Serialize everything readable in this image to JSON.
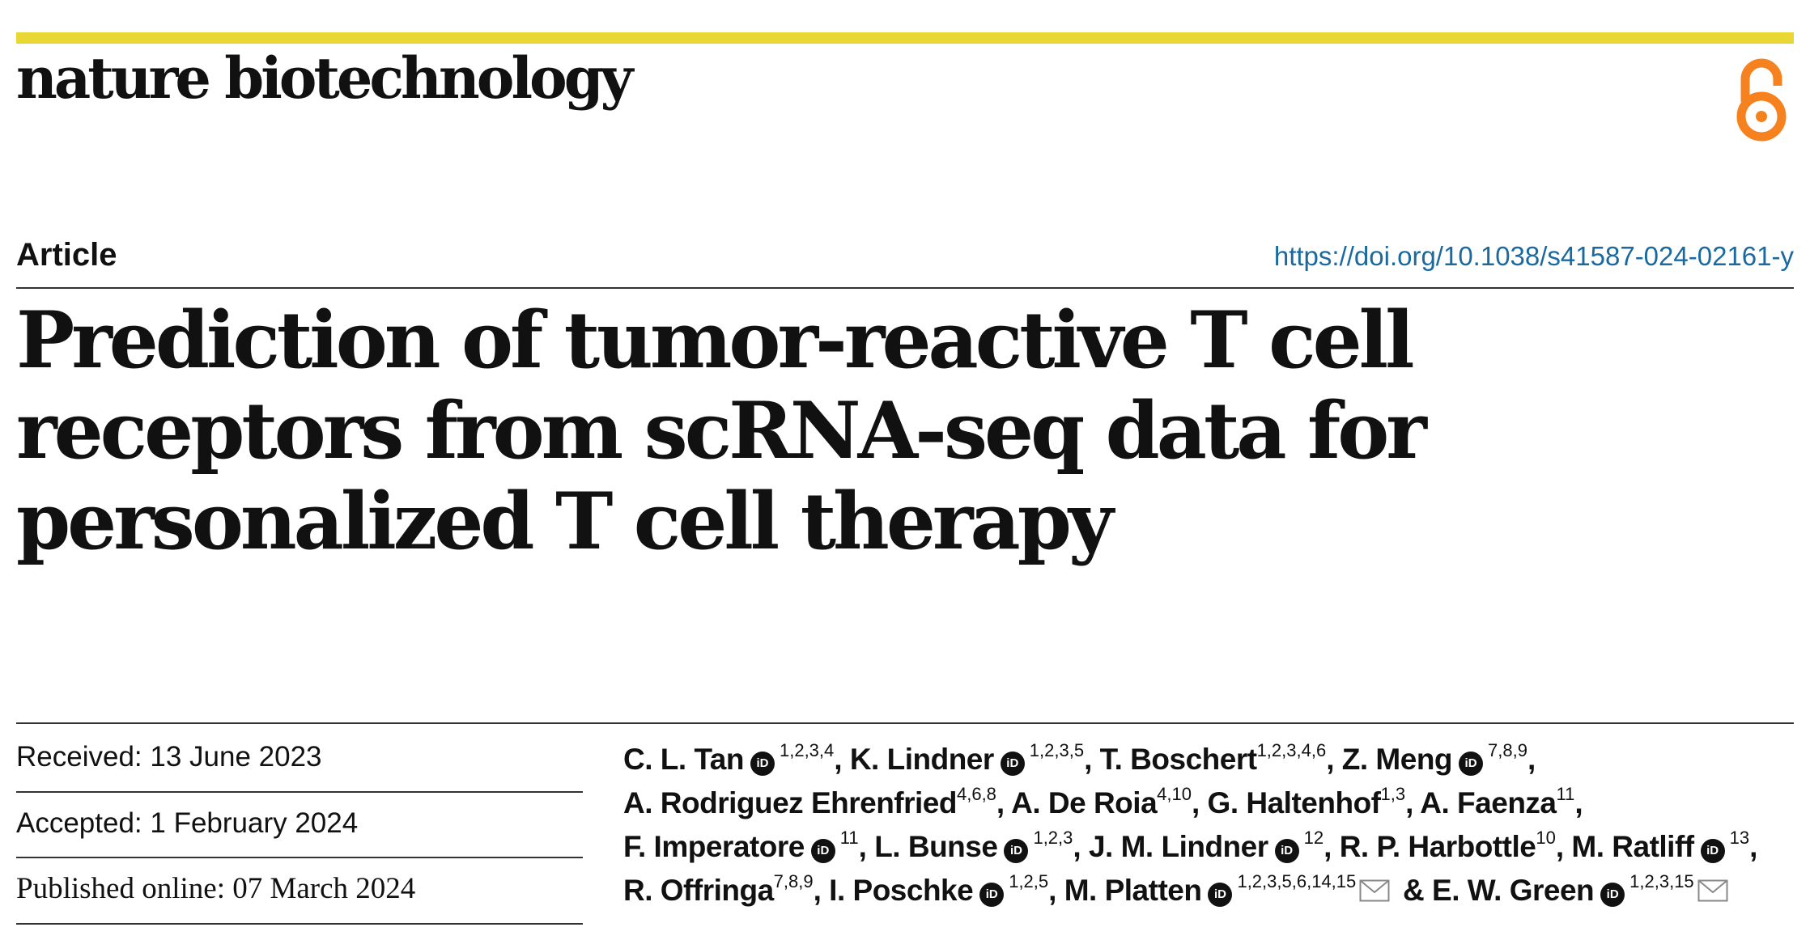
{
  "journal": {
    "name": "nature biotechnology",
    "accent_color": "#e8d734",
    "open_access_icon": "open-access-icon",
    "open_access_color": "#f5821f"
  },
  "article": {
    "type": "Article",
    "doi": "https://doi.org/10.1038/s41587-024-02161-y",
    "title": "Prediction of tumor-reactive T cell receptors from scRNA-seq data for personalized T cell therapy"
  },
  "dates": {
    "received": "Received: 13 June 2023",
    "accepted": "Accepted: 1 February 2024",
    "published": "Published online: 07 March 2024"
  },
  "authors": [
    {
      "name": "C. L. Tan",
      "orcid": true,
      "affiliations": "1,2,3,4",
      "sep": ", "
    },
    {
      "name": "K. Lindner",
      "orcid": true,
      "affiliations": "1,2,3,5",
      "sep": ", "
    },
    {
      "name": "T. Boschert",
      "orcid": false,
      "affiliations": "1,2,3,4,6",
      "sep": ", "
    },
    {
      "name": "Z. Meng",
      "orcid": true,
      "affiliations": "7,8,9",
      "sep": ", "
    },
    {
      "name": "A. Rodriguez Ehrenfried",
      "orcid": false,
      "affiliations": "4,6,8",
      "sep": ", "
    },
    {
      "name": "A. De Roia",
      "orcid": false,
      "affiliations": "4,10",
      "sep": ", "
    },
    {
      "name": "G. Haltenhof",
      "orcid": false,
      "affiliations": "1,3",
      "sep": ", "
    },
    {
      "name": "A. Faenza",
      "orcid": false,
      "affiliations": "11",
      "sep": ", "
    },
    {
      "name": "F. Imperatore",
      "orcid": true,
      "affiliations": "11",
      "sep": ", "
    },
    {
      "name": "L. Bunse",
      "orcid": true,
      "affiliations": "1,2,3",
      "sep": ", "
    },
    {
      "name": "J. M. Lindner",
      "orcid": true,
      "affiliations": "12",
      "sep": ", "
    },
    {
      "name": "R. P. Harbottle",
      "orcid": false,
      "affiliations": "10",
      "sep": ", "
    },
    {
      "name": "M. Ratliff",
      "orcid": true,
      "affiliations": "13",
      "sep": ", "
    },
    {
      "name": "R. Offringa",
      "orcid": false,
      "affiliations": "7,8,9",
      "sep": ", "
    },
    {
      "name": "I. Poschke",
      "orcid": true,
      "affiliations": "1,2,5",
      "sep": ", "
    },
    {
      "name": "M. Platten",
      "orcid": true,
      "affiliations": "1,2,3,5,6,14,15",
      "corresponding": true,
      "sep": " & "
    },
    {
      "name": "E. W. Green",
      "orcid": true,
      "affiliations": "1,2,3,15",
      "corresponding": true,
      "sep": ""
    }
  ]
}
